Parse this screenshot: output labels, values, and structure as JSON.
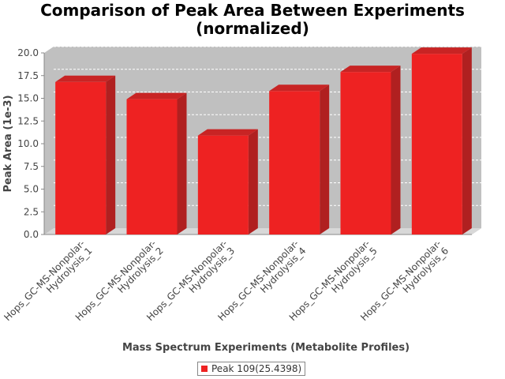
{
  "chart_data": {
    "type": "bar",
    "title": "Comparison of Peak Area Between Experiments",
    "subtitle": "(normalized)",
    "xlabel": "Mass Spectrum Experiments (Metabolite Profiles)",
    "ylabel": "Peak Area (1e-3)",
    "ylim": [
      0,
      20.0
    ],
    "yticks": [
      "0.0",
      "2.5",
      "5.0",
      "7.5",
      "10.0",
      "12.5",
      "15.0",
      "17.5",
      "20.0"
    ],
    "categories": [
      "Hops_GC-MS-Nonpolar-Hydrolysis_1",
      "Hops_GC-MS-Nonpolar-Hydrolysis_2",
      "Hops_GC-MS-Nonpolar-Hydrolysis_3",
      "Hops_GC-MS-Nonpolar-Hydrolysis_4",
      "Hops_GC-MS-Nonpolar-Hydrolysis_5",
      "Hops_GC-MS-Nonpolar-Hydrolysis_6"
    ],
    "category_lines": [
      [
        "Hops_GC-MS-Nonpolar-",
        "Hydrolysis_1"
      ],
      [
        "Hops_GC-MS-Nonpolar-",
        "Hydrolysis_2"
      ],
      [
        "Hops_GC-MS-Nonpolar-",
        "Hydrolysis_3"
      ],
      [
        "Hops_GC-MS-Nonpolar-",
        "Hydrolysis_4"
      ],
      [
        "Hops_GC-MS-Nonpolar-",
        "Hydrolysis_5"
      ],
      [
        "Hops_GC-MS-Nonpolar-",
        "Hydrolysis_6"
      ]
    ],
    "series": [
      {
        "name": "Peak 109(25.4398)",
        "values": [
          16.8,
          14.9,
          10.9,
          15.8,
          17.9,
          19.9
        ]
      }
    ],
    "legend": "bottom",
    "grid": true,
    "colors": {
      "bar": "#ee2222",
      "bar_side": "#b02020",
      "bar_top": "#c82424",
      "plot_bg": "#c0c0c0"
    }
  }
}
